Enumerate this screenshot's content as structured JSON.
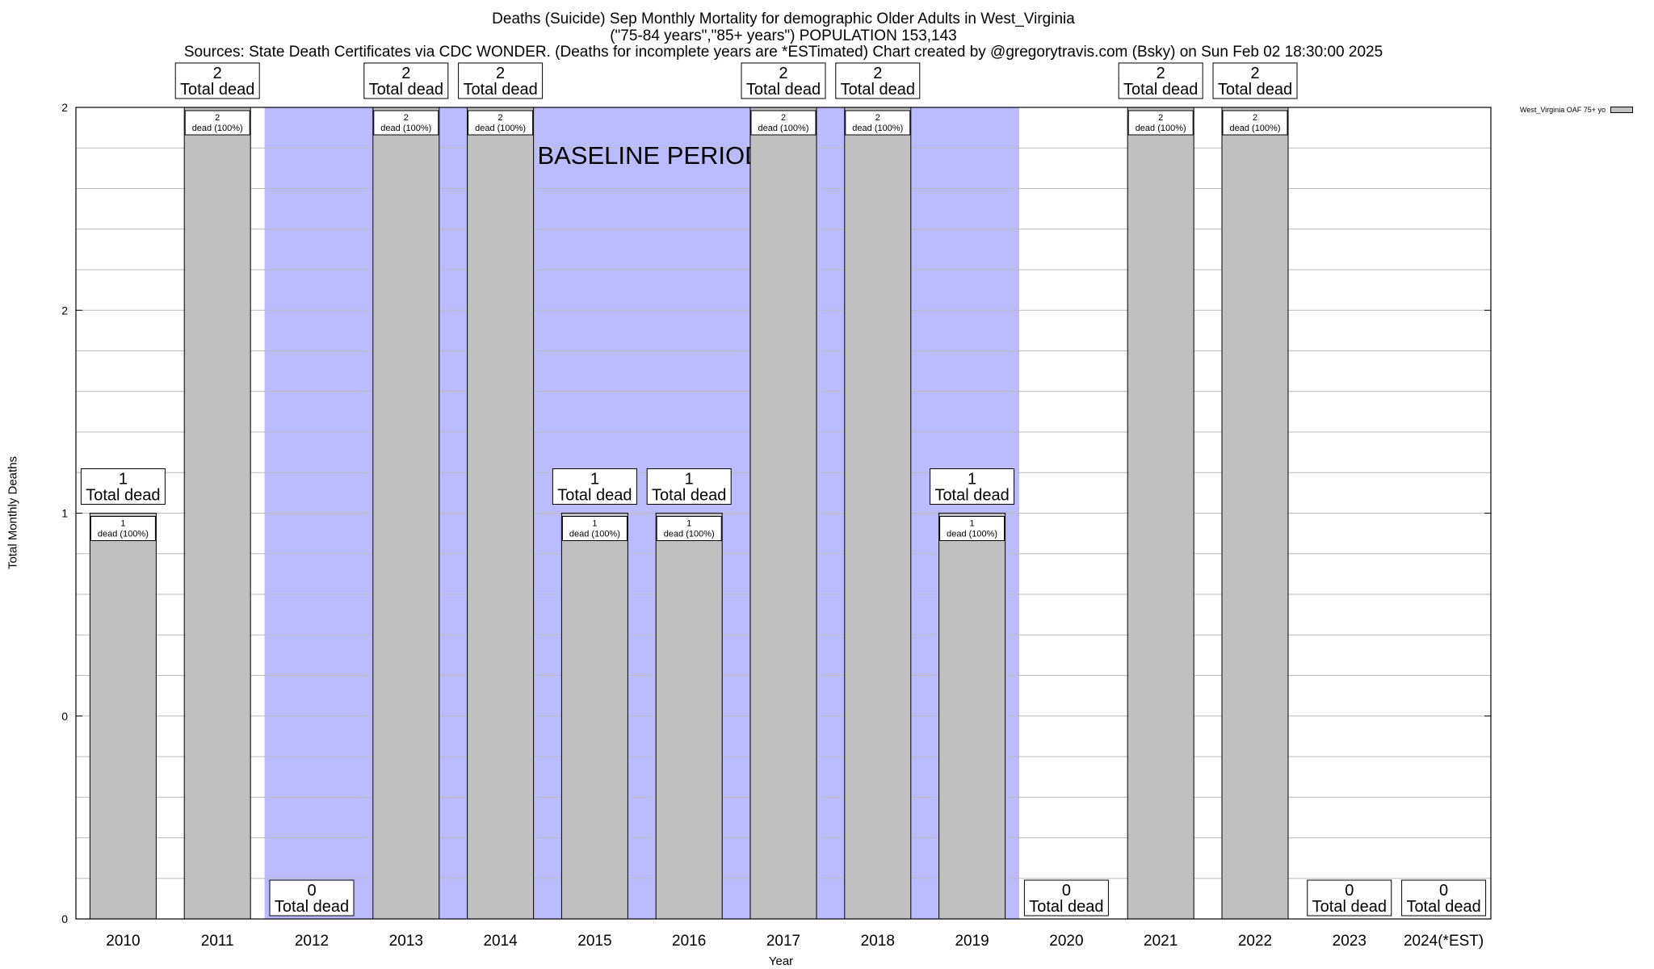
{
  "title": {
    "line1": "Deaths (Suicide) Sep Monthly Mortality for demographic Older Adults in West_Virginia",
    "line2": "(\"75-84 years\",\"85+ years\") POPULATION 153,143",
    "line3": "Sources: State Death Certificates via CDC WONDER. (Deaths for incomplete years are *ESTimated)                Chart created by @gregorytravis.com (Bsky) on Sun Feb 02 18:30:00 2025"
  },
  "chart_data": {
    "type": "bar",
    "categories": [
      "2010",
      "2011",
      "2012",
      "2013",
      "2014",
      "2015",
      "2016",
      "2017",
      "2018",
      "2019",
      "2020",
      "2021",
      "2022",
      "2023",
      "2024(*EST)"
    ],
    "series": [
      {
        "name": "West_Virginia OAF 75+ yo",
        "values": [
          1,
          2,
          0,
          2,
          2,
          1,
          1,
          2,
          2,
          1,
          0,
          2,
          2,
          0,
          0
        ]
      }
    ],
    "ylim": [
      0,
      2
    ],
    "y_ticks": [
      "0",
      "0",
      "1",
      "2",
      "2"
    ],
    "xlabel": "Year",
    "ylabel": "Total Monthly Deaths",
    "total_label_suffix": "Total dead",
    "bar_label_suffix": "dead (100%)",
    "baseline_label": "BASELINE PERIOD",
    "baseline_years": [
      "2012",
      "2019"
    ],
    "legend_position": "top-right",
    "colors": {
      "bar": "#c0c0c0",
      "baseline": "#bbbbff",
      "grid": "#bbbbbb"
    }
  }
}
